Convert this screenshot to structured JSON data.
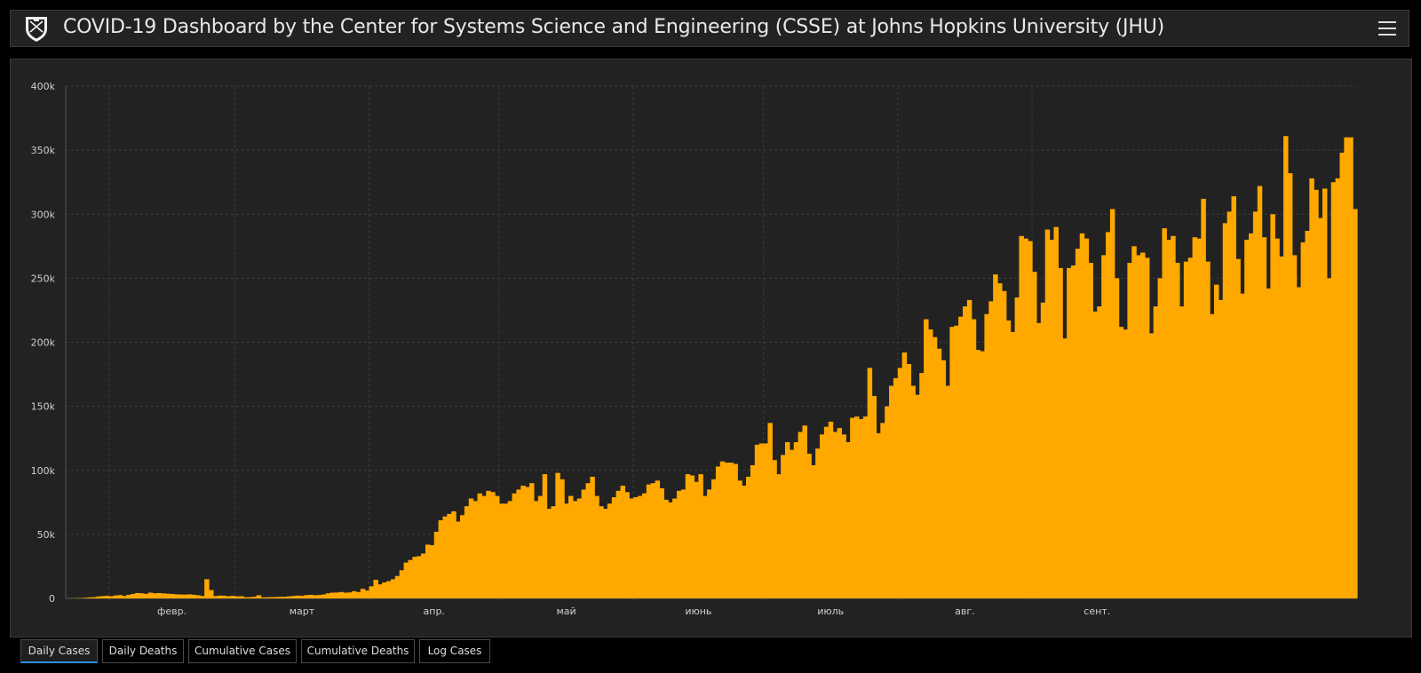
{
  "header": {
    "title": "COVID-19 Dashboard by the Center for Systems Science and Engineering (CSSE) at Johns Hopkins University (JHU)"
  },
  "colors": {
    "bar": "#FFA800",
    "panel": "#222222",
    "grid": "#3c3c3c",
    "axis_text": "#cfcfcf",
    "tab_active_underline": "#2f8fe0"
  },
  "icons": {
    "logo": "jhu-shield-icon",
    "menu": "hamburger-menu-icon"
  },
  "tabs": [
    {
      "label": "Daily Cases",
      "active": true
    },
    {
      "label": "Daily Deaths",
      "active": false
    },
    {
      "label": "Cumulative Cases",
      "active": false
    },
    {
      "label": "Cumulative Deaths",
      "active": false
    },
    {
      "label": "Log Cases",
      "active": false
    }
  ],
  "chart_data": {
    "type": "bar",
    "title": "",
    "xlabel": "",
    "ylabel": "",
    "ylim": [
      0,
      400000
    ],
    "grid": true,
    "y_ticks": [
      {
        "value": 0,
        "label": "0"
      },
      {
        "value": 50000,
        "label": "50k"
      },
      {
        "value": 100000,
        "label": "100k"
      },
      {
        "value": 150000,
        "label": "150k"
      },
      {
        "value": 200000,
        "label": "200k"
      },
      {
        "value": 250000,
        "label": "250k"
      },
      {
        "value": 300000,
        "label": "300k"
      },
      {
        "value": 350000,
        "label": "350k"
      },
      {
        "value": 400000,
        "label": "400k"
      }
    ],
    "x_start_date": "2020-01-22",
    "x_ticks": [
      {
        "date": "2020-02-01",
        "label": "февр."
      },
      {
        "date": "2020-03-01",
        "label": "март"
      },
      {
        "date": "2020-04-01",
        "label": "апр."
      },
      {
        "date": "2020-05-01",
        "label": "май"
      },
      {
        "date": "2020-06-01",
        "label": "июнь"
      },
      {
        "date": "2020-07-01",
        "label": "июль"
      },
      {
        "date": "2020-08-01",
        "label": "авг."
      },
      {
        "date": "2020-09-01",
        "label": "сент."
      }
    ],
    "values": [
      0,
      100,
      200,
      300,
      500,
      800,
      1000,
      1500,
      1800,
      2000,
      1700,
      2300,
      2600,
      1900,
      2800,
      3500,
      4200,
      4000,
      3600,
      4500,
      4000,
      4200,
      3900,
      3700,
      3500,
      3200,
      3100,
      3000,
      3200,
      2900,
      2500,
      1900,
      15000,
      6500,
      1800,
      2200,
      2100,
      1700,
      2000,
      1600,
      1700,
      900,
      1000,
      1300,
      2500,
      800,
      900,
      1000,
      1100,
      1200,
      1300,
      1600,
      1900,
      2200,
      2000,
      2600,
      2800,
      2500,
      2700,
      3100,
      4000,
      4500,
      4600,
      5000,
      4500,
      4700,
      5600,
      5000,
      7500,
      6200,
      9500,
      14500,
      11000,
      12500,
      13500,
      15000,
      17500,
      22000,
      28000,
      30000,
      32500,
      33000,
      35000,
      42000,
      41500,
      52000,
      61000,
      64000,
      66000,
      68000,
      60000,
      65000,
      72000,
      78000,
      76000,
      82000,
      80000,
      84000,
      83000,
      80000,
      74000,
      74000,
      76000,
      82000,
      85000,
      88000,
      87000,
      90000,
      76000,
      80000,
      97000,
      70000,
      72000,
      98000,
      93000,
      74000,
      80000,
      76000,
      78000,
      85000,
      90000,
      95000,
      80000,
      72000,
      70000,
      74000,
      79000,
      84000,
      88000,
      83000,
      78000,
      79000,
      80000,
      82000,
      89000,
      90000,
      92000,
      86000,
      77000,
      75000,
      78000,
      84000,
      85000,
      97000,
      96000,
      91000,
      97000,
      80000,
      85000,
      93000,
      103000,
      107000,
      106000,
      106000,
      105000,
      92000,
      88000,
      95000,
      104000,
      120000,
      121000,
      121000,
      137000,
      108000,
      97000,
      112000,
      122000,
      116000,
      122000,
      130000,
      135000,
      113000,
      104000,
      117000,
      128000,
      134000,
      138000,
      130000,
      133000,
      128000,
      122000,
      141000,
      142000,
      140000,
      142000,
      180000,
      158000,
      129000,
      137000,
      150000,
      166000,
      172000,
      180000,
      192000,
      183000,
      166000,
      159000,
      176000,
      218000,
      210000,
      204000,
      195000,
      186000,
      166000,
      212000,
      213000,
      220000,
      228000,
      233000,
      218000,
      194000,
      193000,
      222000,
      232000,
      253000,
      246000,
      240000,
      217000,
      208000,
      235000,
      283000,
      281000,
      279000,
      255000,
      215000,
      231000,
      288000,
      280000,
      290000,
      258000,
      203000,
      258000,
      260000,
      273000,
      285000,
      281000,
      262000,
      224000,
      228000,
      268000,
      286000,
      304000,
      250000,
      212000,
      210000,
      262000,
      275000,
      268000,
      270000,
      266000,
      207000,
      228000,
      250000,
      289000,
      280000,
      283000,
      262000,
      228000,
      263000,
      266000,
      282000,
      281000,
      312000,
      263000,
      222000,
      245000,
      233000,
      293000,
      302000,
      314000,
      265000,
      238000,
      280000,
      285000,
      302000,
      322000,
      282000,
      242000,
      300000,
      281000,
      267000,
      361000,
      332000,
      268000,
      243000,
      278000,
      287000,
      328000,
      319000,
      297000,
      320000,
      250000,
      325000,
      328000,
      348000,
      360000,
      360000,
      304000
    ]
  }
}
